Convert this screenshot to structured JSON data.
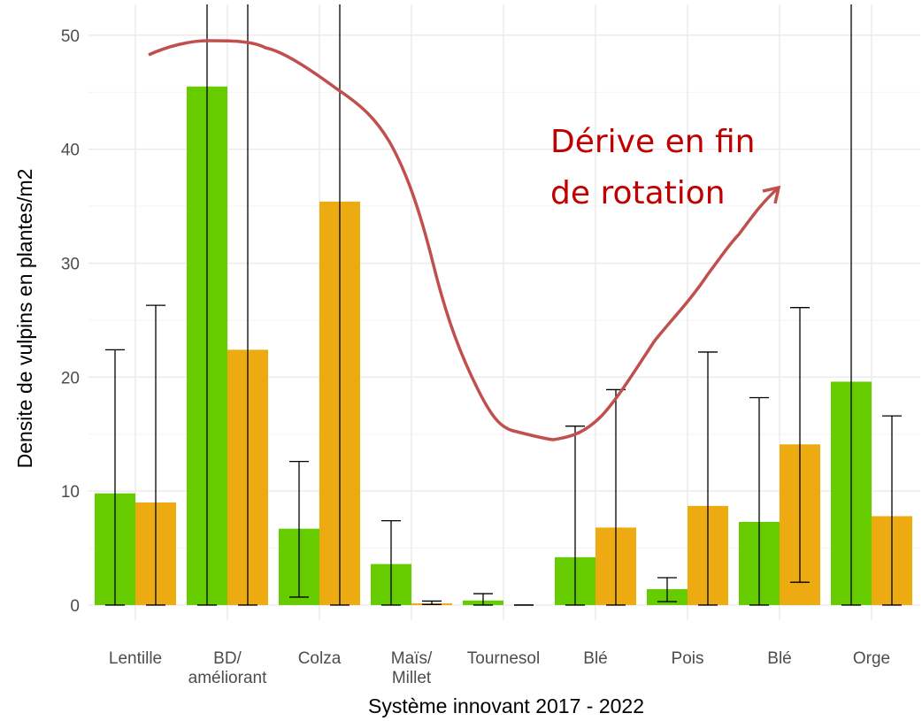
{
  "chart_data": {
    "type": "bar",
    "ylabel": "Densite de vulpins en plantes/m2",
    "xlabel": "Système innovant 2017 - 2022",
    "categories": [
      [
        "Lentille"
      ],
      [
        "BD/",
        "améliorant"
      ],
      [
        "Colza"
      ],
      [
        "Maïs/",
        "Millet"
      ],
      [
        "Tournesol"
      ],
      [
        "Blé"
      ],
      [
        "Pois"
      ],
      [
        "Blé"
      ],
      [
        "Orge"
      ]
    ],
    "series": [
      {
        "color": "#66cc00",
        "values": [
          9.8,
          45.5,
          6.7,
          3.6,
          0.4,
          4.2,
          1.4,
          7.3,
          19.6
        ],
        "lower": [
          0,
          0,
          0.7,
          0,
          0,
          0,
          0.3,
          0,
          0
        ],
        "upper": [
          22.4,
          60,
          12.6,
          7.4,
          1.0,
          15.7,
          2.4,
          18.2,
          60
        ]
      },
      {
        "color": "#eeaa11",
        "values": [
          9.0,
          22.4,
          35.4,
          0.15,
          0,
          6.8,
          8.7,
          14.1,
          7.8
        ],
        "lower": [
          0,
          0,
          0,
          0.05,
          0,
          0,
          0,
          2.0,
          0
        ],
        "upper": [
          26.3,
          60,
          60,
          0.35,
          0,
          18.9,
          22.2,
          26.1,
          16.6
        ]
      }
    ],
    "ylim": [
      -1.3,
      52.7
    ],
    "yticks": [
      0,
      10,
      20,
      30,
      40,
      50
    ],
    "grid": true,
    "annotation": [
      "Dérive en fin",
      "de rotation"
    ]
  }
}
